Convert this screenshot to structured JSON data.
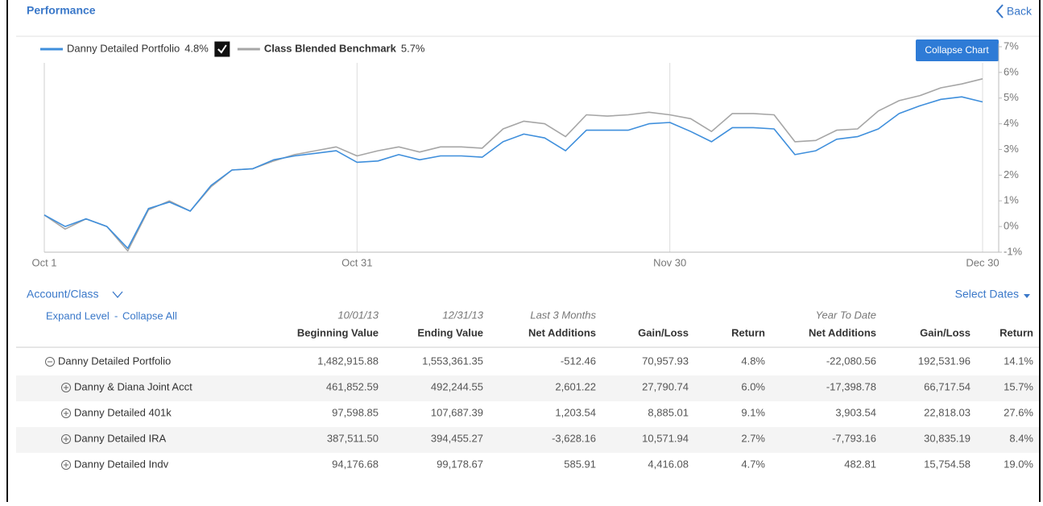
{
  "header": {
    "title": "Performance",
    "back": "Back"
  },
  "button": "Collapse Chart",
  "legend_checked": true,
  "chart_data": {
    "type": "line",
    "categories": [
      "Oct 1",
      null,
      null,
      null,
      null,
      null,
      null,
      null,
      null,
      null,
      null,
      null,
      null,
      null,
      null,
      "Oct 31",
      null,
      null,
      null,
      null,
      null,
      null,
      null,
      null,
      null,
      null,
      null,
      null,
      null,
      null,
      "Nov 30",
      null,
      null,
      null,
      null,
      null,
      null,
      null,
      null,
      null,
      null,
      null,
      null,
      null,
      null,
      "Dec 30"
    ],
    "series": [
      {
        "name": "Danny Detailed Portfolio",
        "return_label": "4.8%",
        "color": "#3f8fdc",
        "values": [
          0.45,
          0.0,
          0.3,
          0.0,
          -0.85,
          0.7,
          0.95,
          0.6,
          1.6,
          2.2,
          2.25,
          2.6,
          2.75,
          2.85,
          2.95,
          2.5,
          2.55,
          2.8,
          2.6,
          2.75,
          2.75,
          2.7,
          3.3,
          3.6,
          3.45,
          2.95,
          3.75,
          3.75,
          3.75,
          4.0,
          4.05,
          3.7,
          3.3,
          3.85,
          3.85,
          3.8,
          2.8,
          2.95,
          3.4,
          3.5,
          3.8,
          4.4,
          4.7,
          4.95,
          5.05,
          4.85
        ]
      },
      {
        "name": "Class Blended Benchmark",
        "return_label": "5.7%",
        "color": "#a6a6a6",
        "values": [
          0.45,
          -0.1,
          0.3,
          0.0,
          -0.95,
          0.65,
          1.0,
          0.6,
          1.55,
          2.2,
          2.25,
          2.55,
          2.8,
          2.95,
          3.1,
          2.75,
          2.95,
          3.1,
          2.9,
          3.1,
          3.1,
          3.05,
          3.8,
          4.1,
          4.0,
          3.5,
          4.35,
          4.3,
          4.35,
          4.45,
          4.35,
          4.2,
          3.7,
          4.4,
          4.4,
          4.35,
          3.3,
          3.35,
          3.75,
          3.8,
          4.5,
          4.9,
          5.1,
          5.4,
          5.55,
          5.75
        ]
      }
    ],
    "ylim": [
      -1,
      7
    ],
    "yticks": [
      {
        "value": -1,
        "label": "-1%"
      },
      {
        "value": 0,
        "label": "0%"
      },
      {
        "value": 1,
        "label": "1%"
      },
      {
        "value": 2,
        "label": "2%"
      },
      {
        "value": 3,
        "label": "3%"
      },
      {
        "value": 4,
        "label": "4%"
      },
      {
        "value": 5,
        "label": "5%"
      },
      {
        "value": 6,
        "label": "6%"
      },
      {
        "value": 7,
        "label": "7%"
      }
    ],
    "grid": true
  },
  "table": {
    "account_selector": "Account/Class",
    "select_dates": "Select Dates",
    "expand": "Expand Level",
    "separator": "-",
    "collapse": "Collapse All",
    "group_headers": [
      "10/01/13",
      "12/31/13",
      "Last 3 Months",
      null,
      null,
      "Year To Date",
      null,
      null
    ],
    "headers": [
      "Beginning Value",
      "Ending Value",
      "Net Additions",
      "Gain/Loss",
      "Return",
      "Net Additions",
      "Gain/Loss",
      "Return"
    ],
    "rows": [
      {
        "name": "Danny Detailed Portfolio",
        "expanded": true,
        "cells": [
          "1,482,915.88",
          "1,553,361.35",
          "-512.46",
          "70,957.93",
          "4.8%",
          "-22,080.56",
          "192,531.96",
          "14.1%"
        ]
      },
      {
        "name": "Danny & Diana Joint Acct",
        "expanded": false,
        "cells": [
          "461,852.59",
          "492,244.55",
          "2,601.22",
          "27,790.74",
          "6.0%",
          "-17,398.78",
          "66,717.54",
          "15.7%"
        ]
      },
      {
        "name": "Danny Detailed 401k",
        "expanded": false,
        "cells": [
          "97,598.85",
          "107,687.39",
          "1,203.54",
          "8,885.01",
          "9.1%",
          "3,903.54",
          "22,818.03",
          "27.6%"
        ]
      },
      {
        "name": "Danny Detailed IRA",
        "expanded": false,
        "cells": [
          "387,511.50",
          "394,455.27",
          "-3,628.16",
          "10,571.94",
          "2.7%",
          "-7,793.16",
          "30,835.19",
          "8.4%"
        ]
      },
      {
        "name": "Danny Detailed Indv",
        "expanded": false,
        "cells": [
          "94,176.68",
          "99,178.67",
          "585.91",
          "4,416.08",
          "4.7%",
          "482.81",
          "15,754.58",
          "19.0%"
        ]
      }
    ]
  }
}
